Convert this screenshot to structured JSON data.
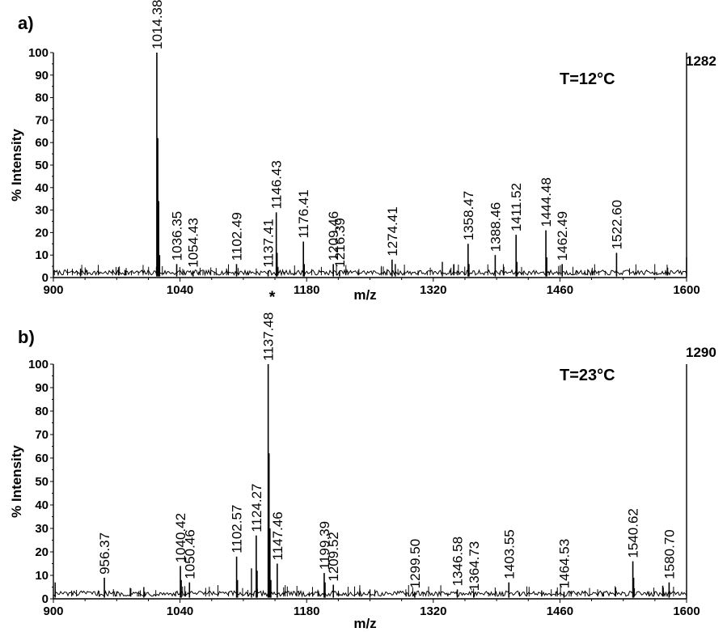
{
  "chart_data": [
    {
      "type": "line",
      "panel_label": "a)",
      "temperature_label": "T=12°C",
      "max_intensity_label": "1282",
      "xlabel": "m/z",
      "ylabel": "% Intensity",
      "xlim": [
        900,
        1600
      ],
      "ylim": [
        0,
        100
      ],
      "x_ticks": [
        900,
        1040,
        1180,
        1320,
        1460,
        1600
      ],
      "y_ticks": [
        0,
        10,
        20,
        30,
        40,
        50,
        60,
        70,
        80,
        90,
        100
      ],
      "baseline_level": 2,
      "labeled_peaks": [
        {
          "mz": 1014.38,
          "label": "1014.38",
          "intensity": 100
        },
        {
          "mz": 1036.35,
          "label": "1036.35",
          "intensity": 6
        },
        {
          "mz": 1054.43,
          "label": "1054.43",
          "intensity": 3
        },
        {
          "mz": 1102.49,
          "label": "1102.49",
          "intensity": 6
        },
        {
          "mz": 1137.41,
          "label": "1137.41",
          "intensity": 3
        },
        {
          "mz": 1146.43,
          "label": "1146.43",
          "intensity": 29
        },
        {
          "mz": 1176.41,
          "label": "1176.41",
          "intensity": 16
        },
        {
          "mz": 1209.46,
          "label": "1209.46",
          "intensity": 6
        },
        {
          "mz": 1216.39,
          "label": "1216.39",
          "intensity": 3
        },
        {
          "mz": 1274.41,
          "label": "1274.41",
          "intensity": 8
        },
        {
          "mz": 1358.47,
          "label": "1358.47",
          "intensity": 15
        },
        {
          "mz": 1388.46,
          "label": "1388.46",
          "intensity": 10
        },
        {
          "mz": 1411.52,
          "label": "1411.52",
          "intensity": 19
        },
        {
          "mz": 1444.48,
          "label": "1444.48",
          "intensity": 21
        },
        {
          "mz": 1462.49,
          "label": "1462.49",
          "intensity": 6
        },
        {
          "mz": 1522.6,
          "label": "1522.60",
          "intensity": 11
        }
      ],
      "other_peaks": [
        {
          "mz": 1015.5,
          "intensity": 62
        },
        {
          "mz": 1016.5,
          "intensity": 34
        },
        {
          "mz": 1017.5,
          "intensity": 10
        },
        {
          "mz": 1147.4,
          "intensity": 11
        },
        {
          "mz": 1177.4,
          "intensity": 6
        },
        {
          "mz": 1359.5,
          "intensity": 6
        },
        {
          "mz": 1412.5,
          "intensity": 7
        },
        {
          "mz": 1445.5,
          "intensity": 9
        },
        {
          "mz": 1278,
          "intensity": 6
        },
        {
          "mz": 1330,
          "intensity": 7
        },
        {
          "mz": 1600,
          "intensity": 9
        },
        {
          "mz": 930,
          "intensity": 4
        }
      ]
    },
    {
      "type": "line",
      "panel_label": "b)",
      "temperature_label": "T=23°C",
      "max_intensity_label": "1290",
      "xlabel": "m/z",
      "ylabel": "% Intensity",
      "xlim": [
        900,
        1600
      ],
      "ylim": [
        0,
        100
      ],
      "x_ticks": [
        900,
        1040,
        1180,
        1320,
        1460,
        1600
      ],
      "y_ticks": [
        0,
        10,
        20,
        30,
        40,
        50,
        60,
        70,
        80,
        90,
        100
      ],
      "baseline_level": 2,
      "labeled_peaks": [
        {
          "mz": 956.37,
          "label": "956.37",
          "intensity": 9
        },
        {
          "mz": 1040.42,
          "label": "1040.42",
          "intensity": 14
        },
        {
          "mz": 1050.46,
          "label": "1050.46",
          "intensity": 7
        },
        {
          "mz": 1102.57,
          "label": "1102.57",
          "intensity": 18
        },
        {
          "mz": 1124.27,
          "label": "1124.27",
          "intensity": 27
        },
        {
          "mz": 1137.48,
          "label": "1137.48",
          "intensity": 100,
          "annotation": "*"
        },
        {
          "mz": 1147.46,
          "label": "1147.46",
          "intensity": 15
        },
        {
          "mz": 1199.39,
          "label": "1199.39",
          "intensity": 11
        },
        {
          "mz": 1209.52,
          "label": "1209.52",
          "intensity": 6
        },
        {
          "mz": 1299.5,
          "label": "1299.50",
          "intensity": 3
        },
        {
          "mz": 1346.58,
          "label": "1346.58",
          "intensity": 4
        },
        {
          "mz": 1364.73,
          "label": "1364.73",
          "intensity": 2
        },
        {
          "mz": 1403.55,
          "label": "1403.55",
          "intensity": 7
        },
        {
          "mz": 1464.53,
          "label": "1464.53",
          "intensity": 3
        },
        {
          "mz": 1540.62,
          "label": "1540.62",
          "intensity": 16
        },
        {
          "mz": 1580.7,
          "label": "1580.70",
          "intensity": 7
        }
      ],
      "other_peaks": [
        {
          "mz": 1138.5,
          "intensity": 62
        },
        {
          "mz": 1139.5,
          "intensity": 30
        },
        {
          "mz": 1140.5,
          "intensity": 8
        },
        {
          "mz": 1041.4,
          "intensity": 8
        },
        {
          "mz": 1103.6,
          "intensity": 8
        },
        {
          "mz": 1125.3,
          "intensity": 12
        },
        {
          "mz": 1200.4,
          "intensity": 7
        },
        {
          "mz": 1541.6,
          "intensity": 9
        },
        {
          "mz": 902,
          "intensity": 7
        },
        {
          "mz": 1000,
          "intensity": 5
        },
        {
          "mz": 1119,
          "intensity": 13
        },
        {
          "mz": 1250,
          "intensity": 4
        }
      ]
    }
  ]
}
